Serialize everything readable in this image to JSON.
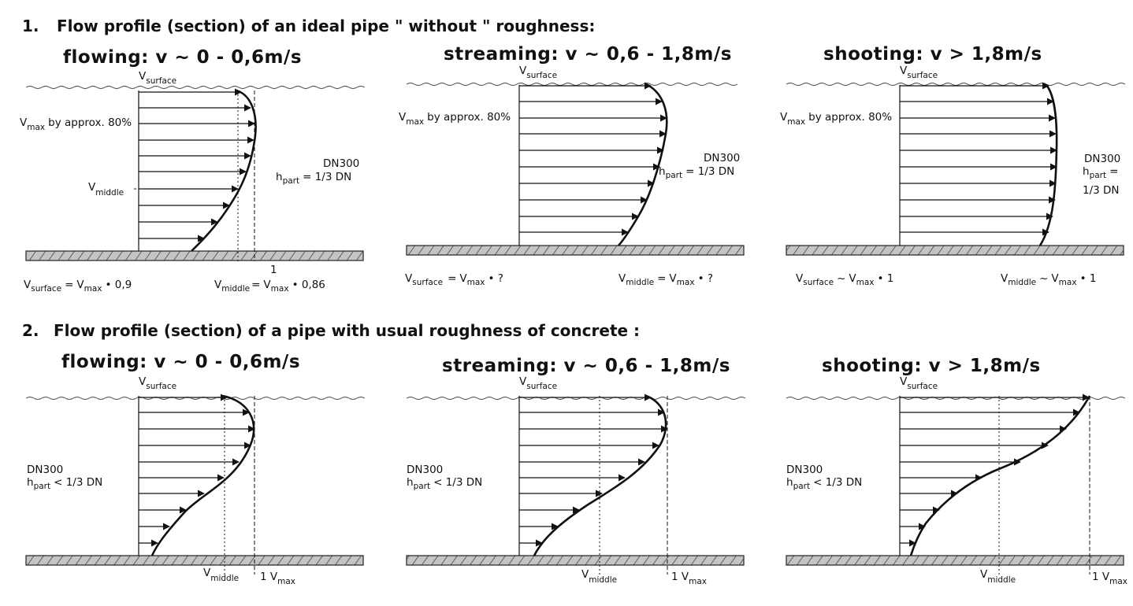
{
  "colors": {
    "line": "#111111",
    "ground": "#bdbdbd",
    "background": "#ffffff"
  },
  "section1": {
    "number": "1.",
    "title": "Flow profile (section) of an ideal pipe \" without \" roughness:"
  },
  "section2": {
    "number": "2.",
    "title": "Flow profile (section) of a pipe with usual roughness of concrete :"
  },
  "regimes": [
    {
      "name": "flowing",
      "title": "flowing: v ~ 0 - 0,6m/s"
    },
    {
      "name": "streaming",
      "title": "streaming: v ~ 0,6 - 1,8m/s"
    },
    {
      "name": "shooting",
      "title": "shooting: v > 1,8m/s"
    }
  ],
  "labels": {
    "v": "V",
    "surface": "surface",
    "max": "max",
    "middle": "middle",
    "part": "part",
    "h": "h",
    "by_approx": "by approx. 80%",
    "dn300": "DN300",
    "hpart_eq": "= 1/3 DN",
    "hpart_eq_short": "=",
    "one_third_dn": "1/3 DN",
    "hpart_lt": "< 1/3 DN",
    "footnote_mark": "1",
    "one": "1",
    "one_v": "1 V"
  },
  "formulas_row1": [
    {
      "surface_op": "=",
      "surface_factor": "• 0,9",
      "middle_op": "=",
      "middle_factor": "• 0,86"
    },
    {
      "surface_op": "=",
      "surface_factor": "• ?",
      "middle_op": "=",
      "middle_factor": "• ?"
    },
    {
      "surface_op": "~",
      "surface_factor": "• 1",
      "middle_op": "~",
      "middle_factor": "• 1"
    }
  ]
}
